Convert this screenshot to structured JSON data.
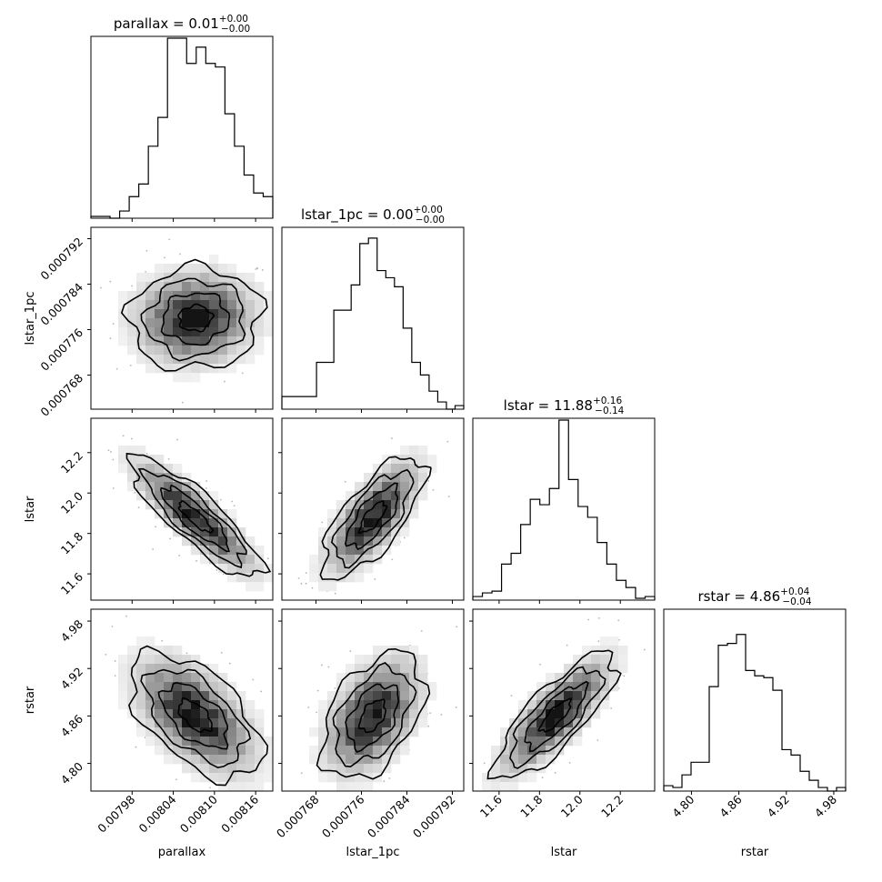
{
  "chart_data": {
    "type": "corner",
    "parameters": [
      {
        "key": "parallax",
        "label": "parallax",
        "title_prefix": "parallax = 0.01",
        "title_upper": "+0.00",
        "title_lower": "−0.00",
        "range": [
          0.00792,
          0.008185
        ],
        "mean": 0.008072,
        "sd": 4.8e-05,
        "ticks": [
          0.00798,
          0.00804,
          0.0081,
          0.00816
        ],
        "tick_labels": [
          "0.00798",
          "0.00804",
          "0.00810",
          "0.00816"
        ]
      },
      {
        "key": "lstar_1pc",
        "label": "lstar_1pc",
        "title_prefix": "lstar_1pc = 0.00",
        "title_upper": "+0.00",
        "title_lower": "−0.00",
        "range": [
          0.000762,
          0.000794
        ],
        "mean": 0.000778,
        "sd": 4.5e-06,
        "ticks": [
          0.000768,
          0.000776,
          0.000784,
          0.000792
        ],
        "tick_labels": [
          "0.000768",
          "0.000776",
          "0.000784",
          "0.000792"
        ]
      },
      {
        "key": "lstar",
        "label": "lstar",
        "title_prefix": "lstar = 11.88",
        "title_upper": "+0.16",
        "title_lower": "−0.14",
        "range": [
          11.47,
          12.37
        ],
        "mean": 11.88,
        "sd": 0.15,
        "ticks": [
          11.6,
          11.8,
          12.0,
          12.2
        ],
        "tick_labels": [
          "11.6",
          "11.8",
          "12.0",
          "12.2"
        ]
      },
      {
        "key": "rstar",
        "label": "rstar",
        "title_prefix": "rstar = 4.86",
        "title_upper": "+0.04",
        "title_lower": "−0.04",
        "range": [
          4.765,
          4.995
        ],
        "mean": 4.86,
        "sd": 0.04,
        "ticks": [
          4.8,
          4.86,
          4.92,
          4.98
        ],
        "tick_labels": [
          "4.80",
          "4.86",
          "4.92",
          "4.98"
        ]
      }
    ],
    "histograms": [
      [
        0.01,
        0.01,
        0.0,
        0.04,
        0.12,
        0.19,
        0.4,
        0.56,
        1.0,
        1.0,
        0.86,
        0.95,
        0.86,
        0.84,
        0.58,
        0.4,
        0.24,
        0.14,
        0.12
      ],
      [
        0.07,
        0.07,
        0.07,
        0.07,
        0.26,
        0.26,
        0.55,
        0.55,
        0.69,
        0.92,
        0.95,
        0.77,
        0.73,
        0.68,
        0.45,
        0.26,
        0.19,
        0.1,
        0.04,
        0.0,
        0.02
      ],
      [
        0.02,
        0.04,
        0.05,
        0.2,
        0.26,
        0.42,
        0.56,
        0.53,
        0.62,
        1.0,
        0.67,
        0.52,
        0.46,
        0.32,
        0.2,
        0.11,
        0.07,
        0.01,
        0.02
      ],
      [
        0.03,
        0.02,
        0.09,
        0.16,
        0.16,
        0.58,
        0.81,
        0.82,
        0.87,
        0.67,
        0.64,
        0.63,
        0.56,
        0.23,
        0.2,
        0.11,
        0.06,
        0.02,
        0.0,
        0.02
      ]
    ],
    "correlations": {
      "1_0": 0.05,
      "2_0": -0.86,
      "2_1": 0.72,
      "3_0": -0.55,
      "3_1": 0.45,
      "3_2": 0.8
    },
    "levels_sigma": [
      0.5,
      1.0,
      1.5,
      2.0
    ]
  }
}
